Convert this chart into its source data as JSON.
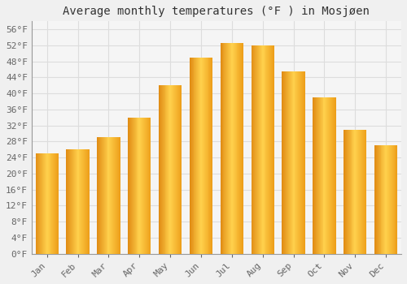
{
  "title": "Average monthly temperatures (°F ) in Mosjøen",
  "months": [
    "Jan",
    "Feb",
    "Mar",
    "Apr",
    "May",
    "Jun",
    "Jul",
    "Aug",
    "Sep",
    "Oct",
    "Nov",
    "Dec"
  ],
  "values": [
    25,
    26,
    29,
    34,
    42,
    49,
    52.5,
    52,
    45.5,
    39,
    31,
    27
  ],
  "bar_color_left": "#E8900A",
  "bar_color_mid": "#FFCC44",
  "bar_color_right": "#F5A010",
  "ylim": [
    0,
    58
  ],
  "yticks": [
    0,
    4,
    8,
    12,
    16,
    20,
    24,
    28,
    32,
    36,
    40,
    44,
    48,
    52,
    56
  ],
  "ytick_labels": [
    "0°F",
    "4°F",
    "8°F",
    "12°F",
    "16°F",
    "20°F",
    "24°F",
    "28°F",
    "32°F",
    "36°F",
    "40°F",
    "44°F",
    "48°F",
    "52°F",
    "56°F"
  ],
  "background_color": "#f0f0f0",
  "plot_bg_color": "#f5f5f5",
  "grid_color": "#dddddd",
  "font_family": "monospace",
  "title_fontsize": 10,
  "tick_fontsize": 8,
  "bar_width": 0.75
}
